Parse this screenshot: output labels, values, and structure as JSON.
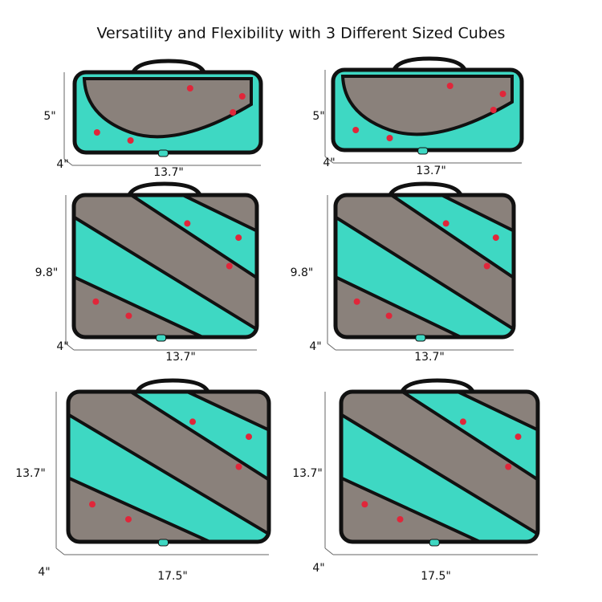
{
  "title": "Versatility and Flexibility with 3 Different Sized Cubes",
  "cubes": [
    {
      "height": "5\"",
      "depth": "4\"",
      "width": "13.7\""
    },
    {
      "height": "5\"",
      "depth": "4\"",
      "width": "13.7\""
    },
    {
      "height": "9.8\"",
      "depth": "4\"",
      "width": "13.7\""
    },
    {
      "height": "9.8\"",
      "depth": "4\"",
      "width": "13.7\""
    },
    {
      "height": "13.7\"",
      "depth": "4\"",
      "width": "17.5\""
    },
    {
      "height": "13.7\"",
      "depth": "4\"",
      "width": "17.5\""
    }
  ]
}
